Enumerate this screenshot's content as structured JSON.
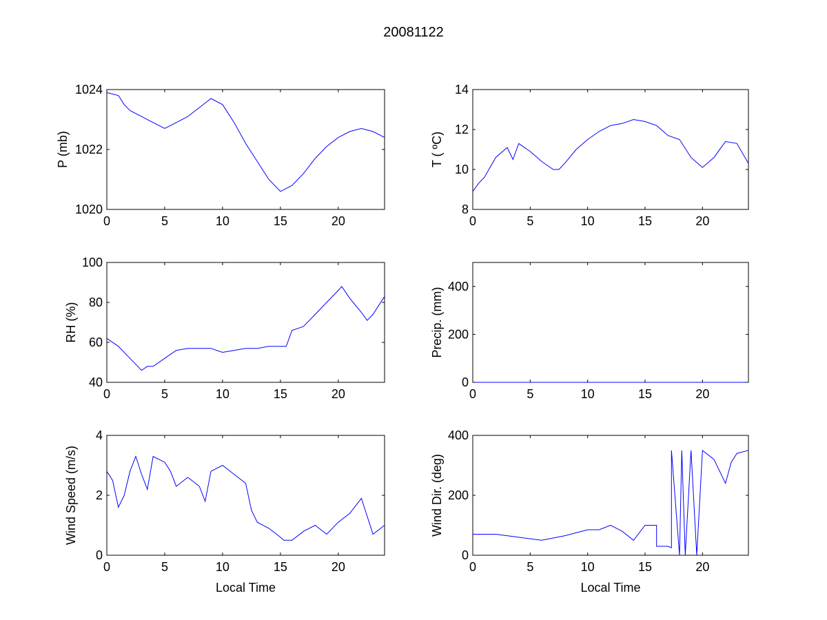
{
  "figure_title": "20081122",
  "line_color": "#0000ff",
  "chart_data": [
    {
      "type": "line",
      "title": "",
      "xlabel": "",
      "ylabel": "P (mb)",
      "xlim": [
        0,
        24
      ],
      "ylim": [
        1020,
        1024
      ],
      "xticks": [
        0,
        5,
        10,
        15,
        20
      ],
      "yticks": [
        1020,
        1022,
        1024
      ],
      "x": [
        0,
        1,
        1.5,
        2,
        3,
        4,
        5,
        6,
        7,
        8,
        9,
        10,
        10.5,
        11,
        12,
        13,
        14,
        15,
        16,
        17,
        18,
        19,
        20,
        21,
        22,
        23,
        24
      ],
      "y": [
        1023.9,
        1023.8,
        1023.5,
        1023.3,
        1023.1,
        1022.9,
        1022.7,
        1022.9,
        1023.1,
        1023.4,
        1023.7,
        1023.5,
        1023.2,
        1022.9,
        1022.2,
        1021.6,
        1021.0,
        1020.6,
        1020.8,
        1021.2,
        1021.7,
        1022.1,
        1022.4,
        1022.6,
        1022.7,
        1022.6,
        1022.4
      ]
    },
    {
      "type": "line",
      "title": "",
      "xlabel": "",
      "ylabel": "T ( ºC)",
      "xlim": [
        0,
        24
      ],
      "ylim": [
        8,
        14
      ],
      "xticks": [
        0,
        5,
        10,
        15,
        20
      ],
      "yticks": [
        8,
        10,
        12,
        14
      ],
      "x": [
        0,
        0.5,
        1,
        1.5,
        2,
        3,
        3.5,
        4,
        5,
        6,
        7,
        7.5,
        8,
        9,
        10,
        11,
        12,
        13,
        14,
        15,
        16,
        17,
        18,
        19,
        20,
        21,
        22,
        23,
        24
      ],
      "y": [
        8.9,
        9.3,
        9.6,
        10.1,
        10.6,
        11.1,
        10.5,
        11.3,
        10.9,
        10.4,
        10.0,
        10.0,
        10.3,
        11.0,
        11.5,
        11.9,
        12.2,
        12.3,
        12.5,
        12.4,
        12.2,
        11.7,
        11.5,
        10.6,
        10.1,
        10.6,
        11.4,
        11.3,
        10.3
      ]
    },
    {
      "type": "line",
      "title": "",
      "xlabel": "",
      "ylabel": "RH (%)",
      "xlim": [
        0,
        24
      ],
      "ylim": [
        40,
        100
      ],
      "xticks": [
        0,
        5,
        10,
        15,
        20
      ],
      "yticks": [
        40,
        60,
        80,
        100
      ],
      "x": [
        0,
        1,
        2,
        3,
        3.5,
        4,
        5,
        6,
        7,
        8,
        9,
        10,
        11,
        12,
        13,
        14,
        15,
        15.5,
        16,
        17,
        18,
        19,
        20,
        20.3,
        21,
        22,
        22.5,
        23,
        24
      ],
      "y": [
        62,
        58,
        52,
        46,
        48,
        48,
        52,
        56,
        57,
        57,
        57,
        55,
        56,
        57,
        57,
        58,
        58,
        58,
        66,
        68,
        74,
        80,
        86,
        88,
        82,
        75,
        71,
        74,
        83
      ]
    },
    {
      "type": "line",
      "title": "",
      "xlabel": "",
      "ylabel": "Precip. (mm)",
      "xlim": [
        0,
        24
      ],
      "ylim": [
        0,
        500
      ],
      "xticks": [
        0,
        5,
        10,
        15,
        20
      ],
      "yticks": [
        0,
        200,
        400
      ],
      "x": [
        0,
        24
      ],
      "y": [
        0,
        0
      ]
    },
    {
      "type": "line",
      "title": "",
      "xlabel": "Local Time",
      "ylabel": "Wind Speed (m/s)",
      "xlim": [
        0,
        24
      ],
      "ylim": [
        0,
        4
      ],
      "xticks": [
        0,
        5,
        10,
        15,
        20
      ],
      "yticks": [
        0,
        2,
        4
      ],
      "x": [
        0,
        0.5,
        1,
        1.5,
        2,
        2.5,
        3,
        3.5,
        4,
        5,
        5.5,
        6,
        7,
        8,
        8.5,
        9,
        10,
        11,
        12,
        12.5,
        13,
        14,
        15,
        15.3,
        16,
        17,
        18,
        19,
        20,
        21,
        22,
        23,
        24
      ],
      "y": [
        2.8,
        2.5,
        1.6,
        2.0,
        2.8,
        3.3,
        2.7,
        2.2,
        3.3,
        3.1,
        2.8,
        2.3,
        2.6,
        2.3,
        1.8,
        2.8,
        3.0,
        2.7,
        2.4,
        1.5,
        1.1,
        0.9,
        0.6,
        0.5,
        0.5,
        0.8,
        1.0,
        0.7,
        1.1,
        1.4,
        1.9,
        0.7,
        1.0
      ]
    },
    {
      "type": "line",
      "title": "",
      "xlabel": "Local Time",
      "ylabel": "Wind Dir. (deg)",
      "xlim": [
        0,
        24
      ],
      "ylim": [
        0,
        400
      ],
      "xticks": [
        0,
        5,
        10,
        15,
        20
      ],
      "yticks": [
        0,
        200,
        400
      ],
      "x": [
        0,
        2,
        4,
        6,
        8,
        10,
        11,
        12,
        13,
        14,
        15,
        16,
        16,
        17,
        17.3,
        17.3,
        18,
        18.2,
        18.5,
        19,
        19.5,
        20,
        21,
        22,
        22.5,
        23,
        24
      ],
      "y": [
        70,
        70,
        60,
        50,
        65,
        85,
        85,
        100,
        80,
        50,
        100,
        100,
        30,
        30,
        25,
        350,
        0,
        350,
        0,
        350,
        0,
        350,
        320,
        240,
        310,
        340,
        350
      ]
    }
  ]
}
